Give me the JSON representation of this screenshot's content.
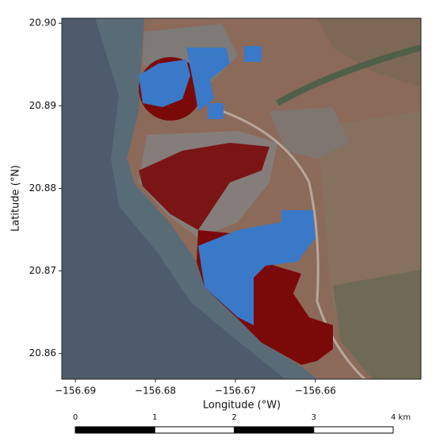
{
  "chart_data": {
    "type": "map",
    "xlabel": "Longitude (°W)",
    "ylabel": "Latitude (°N)",
    "xlim": [
      -156.6917,
      -156.6468
    ],
    "ylim": [
      20.8569,
      20.9006
    ],
    "xticks": [
      {
        "value": -156.69,
        "label": "−156.69"
      },
      {
        "value": -156.68,
        "label": "−156.68"
      },
      {
        "value": -156.67,
        "label": "−156.67"
      },
      {
        "value": -156.66,
        "label": "−156.66"
      }
    ],
    "yticks": [
      20.86,
      20.87,
      20.88,
      20.89,
      {
        "value": 20.9,
        "label": "20.90"
      }
    ]
  },
  "scale_bar": {
    "ticks": [
      0,
      1,
      2,
      3,
      {
        "value": 4,
        "label": "4 km"
      }
    ]
  }
}
